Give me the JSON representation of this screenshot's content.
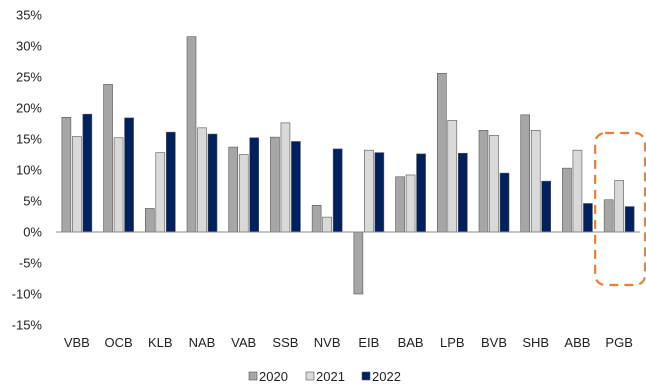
{
  "chart_data": {
    "type": "bar",
    "categories": [
      "VBB",
      "OCB",
      "KLB",
      "NAB",
      "VAB",
      "SSB",
      "NVB",
      "EIB",
      "BAB",
      "LPB",
      "BVB",
      "SHB",
      "ABB",
      "PGB"
    ],
    "series": [
      {
        "name": "2020",
        "color": "#a6a6a6",
        "values": [
          18.5,
          23.8,
          3.8,
          31.5,
          13.7,
          15.3,
          4.3,
          -10.0,
          8.9,
          25.6,
          16.4,
          18.9,
          10.3,
          5.2
        ]
      },
      {
        "name": "2021",
        "color": "#d9d9d9",
        "values": [
          15.4,
          15.2,
          12.8,
          16.8,
          12.5,
          17.6,
          2.4,
          13.2,
          9.2,
          18.0,
          15.6,
          16.4,
          13.2,
          8.3
        ]
      },
      {
        "name": "2022",
        "color": "#002060",
        "values": [
          19.0,
          18.4,
          16.1,
          15.8,
          15.2,
          14.6,
          13.4,
          12.8,
          12.6,
          12.7,
          9.5,
          8.2,
          4.6,
          4.1
        ]
      }
    ],
    "yticks": [
      "35%",
      "30%",
      "25%",
      "20%",
      "15%",
      "10%",
      "5%",
      "0%",
      "-5%",
      "-10%",
      "-15%"
    ],
    "ylim": [
      -15,
      35
    ],
    "grid": false,
    "legend_position": "bottom",
    "highlight": {
      "category": "PGB",
      "style": "dashed-orange-box",
      "color": "#ed7d31"
    }
  }
}
